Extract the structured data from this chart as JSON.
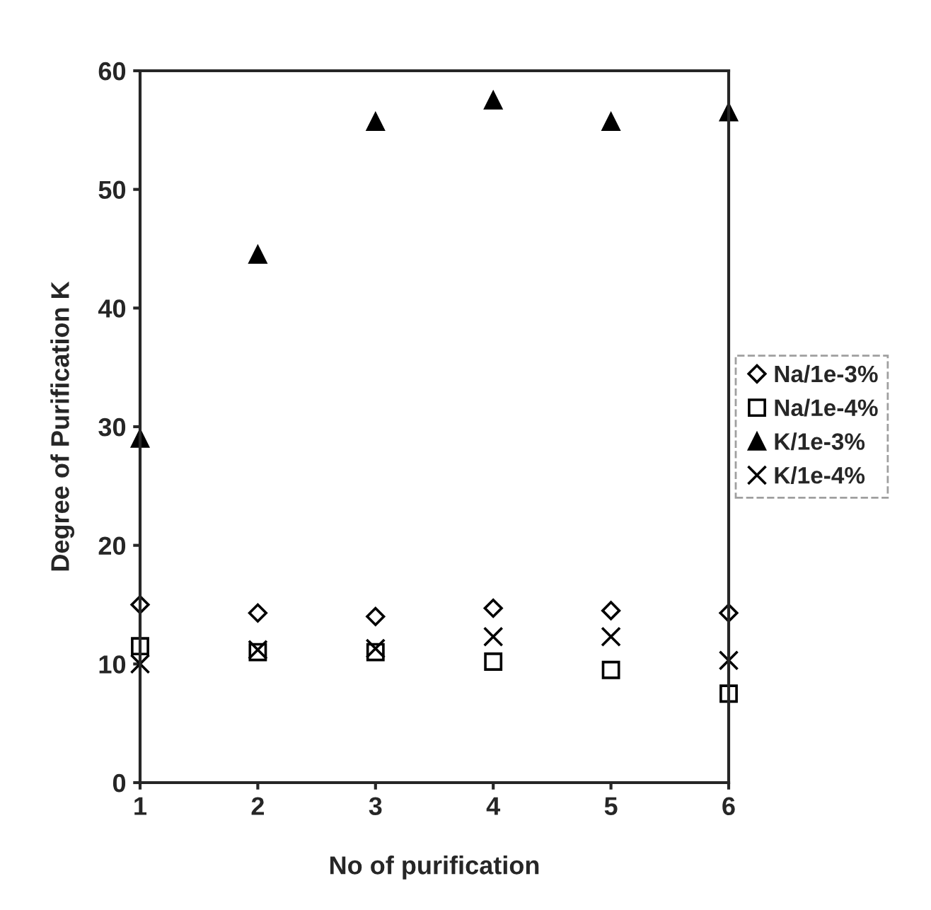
{
  "chart_data": {
    "type": "scatter",
    "xlabel": "No of purification",
    "ylabel": "Degree of Purification K",
    "x": [
      1,
      2,
      3,
      4,
      5,
      6
    ],
    "series": [
      {
        "name": "Na/1e-3%",
        "color": "#000000",
        "marker": "diamond",
        "values": [
          15,
          14.3,
          14,
          14.7,
          14.5,
          14.3
        ]
      },
      {
        "name": "Na/1e-4%",
        "color": "#000000",
        "marker": "square",
        "values": [
          11.5,
          11,
          11,
          10.2,
          9.5,
          7.5
        ]
      },
      {
        "name": "K/1e-3%",
        "color": "#000000",
        "marker": "triangle",
        "values": [
          29,
          44.5,
          55.7,
          57.5,
          55.7,
          56.5
        ]
      },
      {
        "name": "K/1e-4%",
        "color": "#000000",
        "marker": "cross",
        "values": [
          10,
          11.2,
          11.3,
          12.3,
          12.3,
          10.3
        ]
      }
    ],
    "xlim": [
      1,
      6
    ],
    "xticks": [
      1,
      2,
      3,
      4,
      5,
      6
    ],
    "ylim": [
      0,
      60
    ],
    "yticks": [
      0,
      10,
      20,
      30,
      40,
      50,
      60
    ],
    "grid": false,
    "legend": "right"
  }
}
